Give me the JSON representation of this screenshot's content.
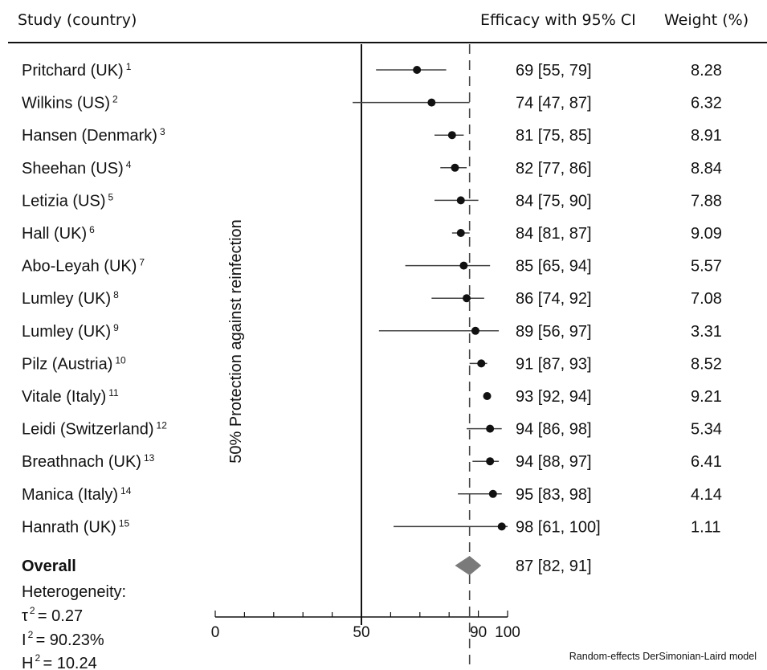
{
  "header": {
    "study": "Study (country)",
    "efficacy": "Efficacy with 95% CI",
    "weight": "Weight (%)"
  },
  "colors": {
    "text": "#111111",
    "ci": "#444444",
    "diamond": "#7a7a7a",
    "dashed": "#444444"
  },
  "chart_data": {
    "type": "forest",
    "title": "",
    "xlabel": "",
    "ylabel": "50% Protection against reinfection",
    "xlim": [
      0,
      100
    ],
    "xticks": [
      "0",
      "50",
      "90",
      "100"
    ],
    "reference_line_solid": 50,
    "reference_line_dashed": 87,
    "studies": [
      {
        "name": "Pritchard (UK)",
        "ref": "1",
        "est": 69,
        "lo": 55,
        "hi": 79,
        "ci_text": "69 [55, 79]",
        "weight": "8.28"
      },
      {
        "name": "Wilkins (US)",
        "ref": "2",
        "est": 74,
        "lo": 47,
        "hi": 87,
        "ci_text": "74 [47, 87]",
        "weight": "6.32"
      },
      {
        "name": "Hansen (Denmark)",
        "ref": "3",
        "est": 81,
        "lo": 75,
        "hi": 85,
        "ci_text": "81 [75, 85]",
        "weight": "8.91"
      },
      {
        "name": "Sheehan (US)",
        "ref": "4",
        "est": 82,
        "lo": 77,
        "hi": 86,
        "ci_text": "82 [77, 86]",
        "weight": "8.84"
      },
      {
        "name": "Letizia (US)",
        "ref": "5",
        "est": 84,
        "lo": 75,
        "hi": 90,
        "ci_text": "84 [75, 90]",
        "weight": "7.88"
      },
      {
        "name": "Hall (UK)",
        "ref": "6",
        "est": 84,
        "lo": 81,
        "hi": 87,
        "ci_text": "84 [81, 87]",
        "weight": "9.09"
      },
      {
        "name": "Abo-Leyah (UK)",
        "ref": "7",
        "est": 85,
        "lo": 65,
        "hi": 94,
        "ci_text": "85 [65, 94]",
        "weight": "5.57"
      },
      {
        "name": "Lumley (UK)",
        "ref": "8",
        "est": 86,
        "lo": 74,
        "hi": 92,
        "ci_text": "86 [74, 92]",
        "weight": "7.08"
      },
      {
        "name": "Lumley (UK)",
        "ref": "9",
        "est": 89,
        "lo": 56,
        "hi": 97,
        "ci_text": "89 [56, 97]",
        "weight": "3.31"
      },
      {
        "name": "Pilz (Austria)",
        "ref": "10",
        "est": 91,
        "lo": 87,
        "hi": 93,
        "ci_text": "91 [87, 93]",
        "weight": "8.52"
      },
      {
        "name": "Vitale (Italy)",
        "ref": "11",
        "est": 93,
        "lo": 92,
        "hi": 94,
        "ci_text": "93 [92, 94]",
        "weight": "9.21"
      },
      {
        "name": "Leidi (Switzerland)",
        "ref": "12",
        "est": 94,
        "lo": 86,
        "hi": 98,
        "ci_text": "94 [86, 98]",
        "weight": "5.34"
      },
      {
        "name": "Breathnach (UK)",
        "ref": "13",
        "est": 94,
        "lo": 88,
        "hi": 97,
        "ci_text": "94 [88, 97]",
        "weight": "6.41"
      },
      {
        "name": "Manica (Italy)",
        "ref": "14",
        "est": 95,
        "lo": 83,
        "hi": 98,
        "ci_text": "95 [83, 98]",
        "weight": "4.14"
      },
      {
        "name": "Hanrath (UK)",
        "ref": "15",
        "est": 98,
        "lo": 61,
        "hi": 100,
        "ci_text": "98 [61, 100]",
        "weight": "1.11"
      }
    ],
    "overall": {
      "label": "Overall",
      "est": 87,
      "lo": 82,
      "hi": 91,
      "ci_text": "87 [82, 91]"
    },
    "heterogeneity": {
      "label": "Heterogeneity:",
      "tau2_symbol": "τ",
      "tau2": "= 0.27",
      "i2_symbol": "I",
      "i2": "= 90.23%",
      "h2_symbol": "H",
      "h2": "= 10.24",
      "exp": "2"
    },
    "model_note": "Random-effects DerSimonian-Laird model"
  }
}
